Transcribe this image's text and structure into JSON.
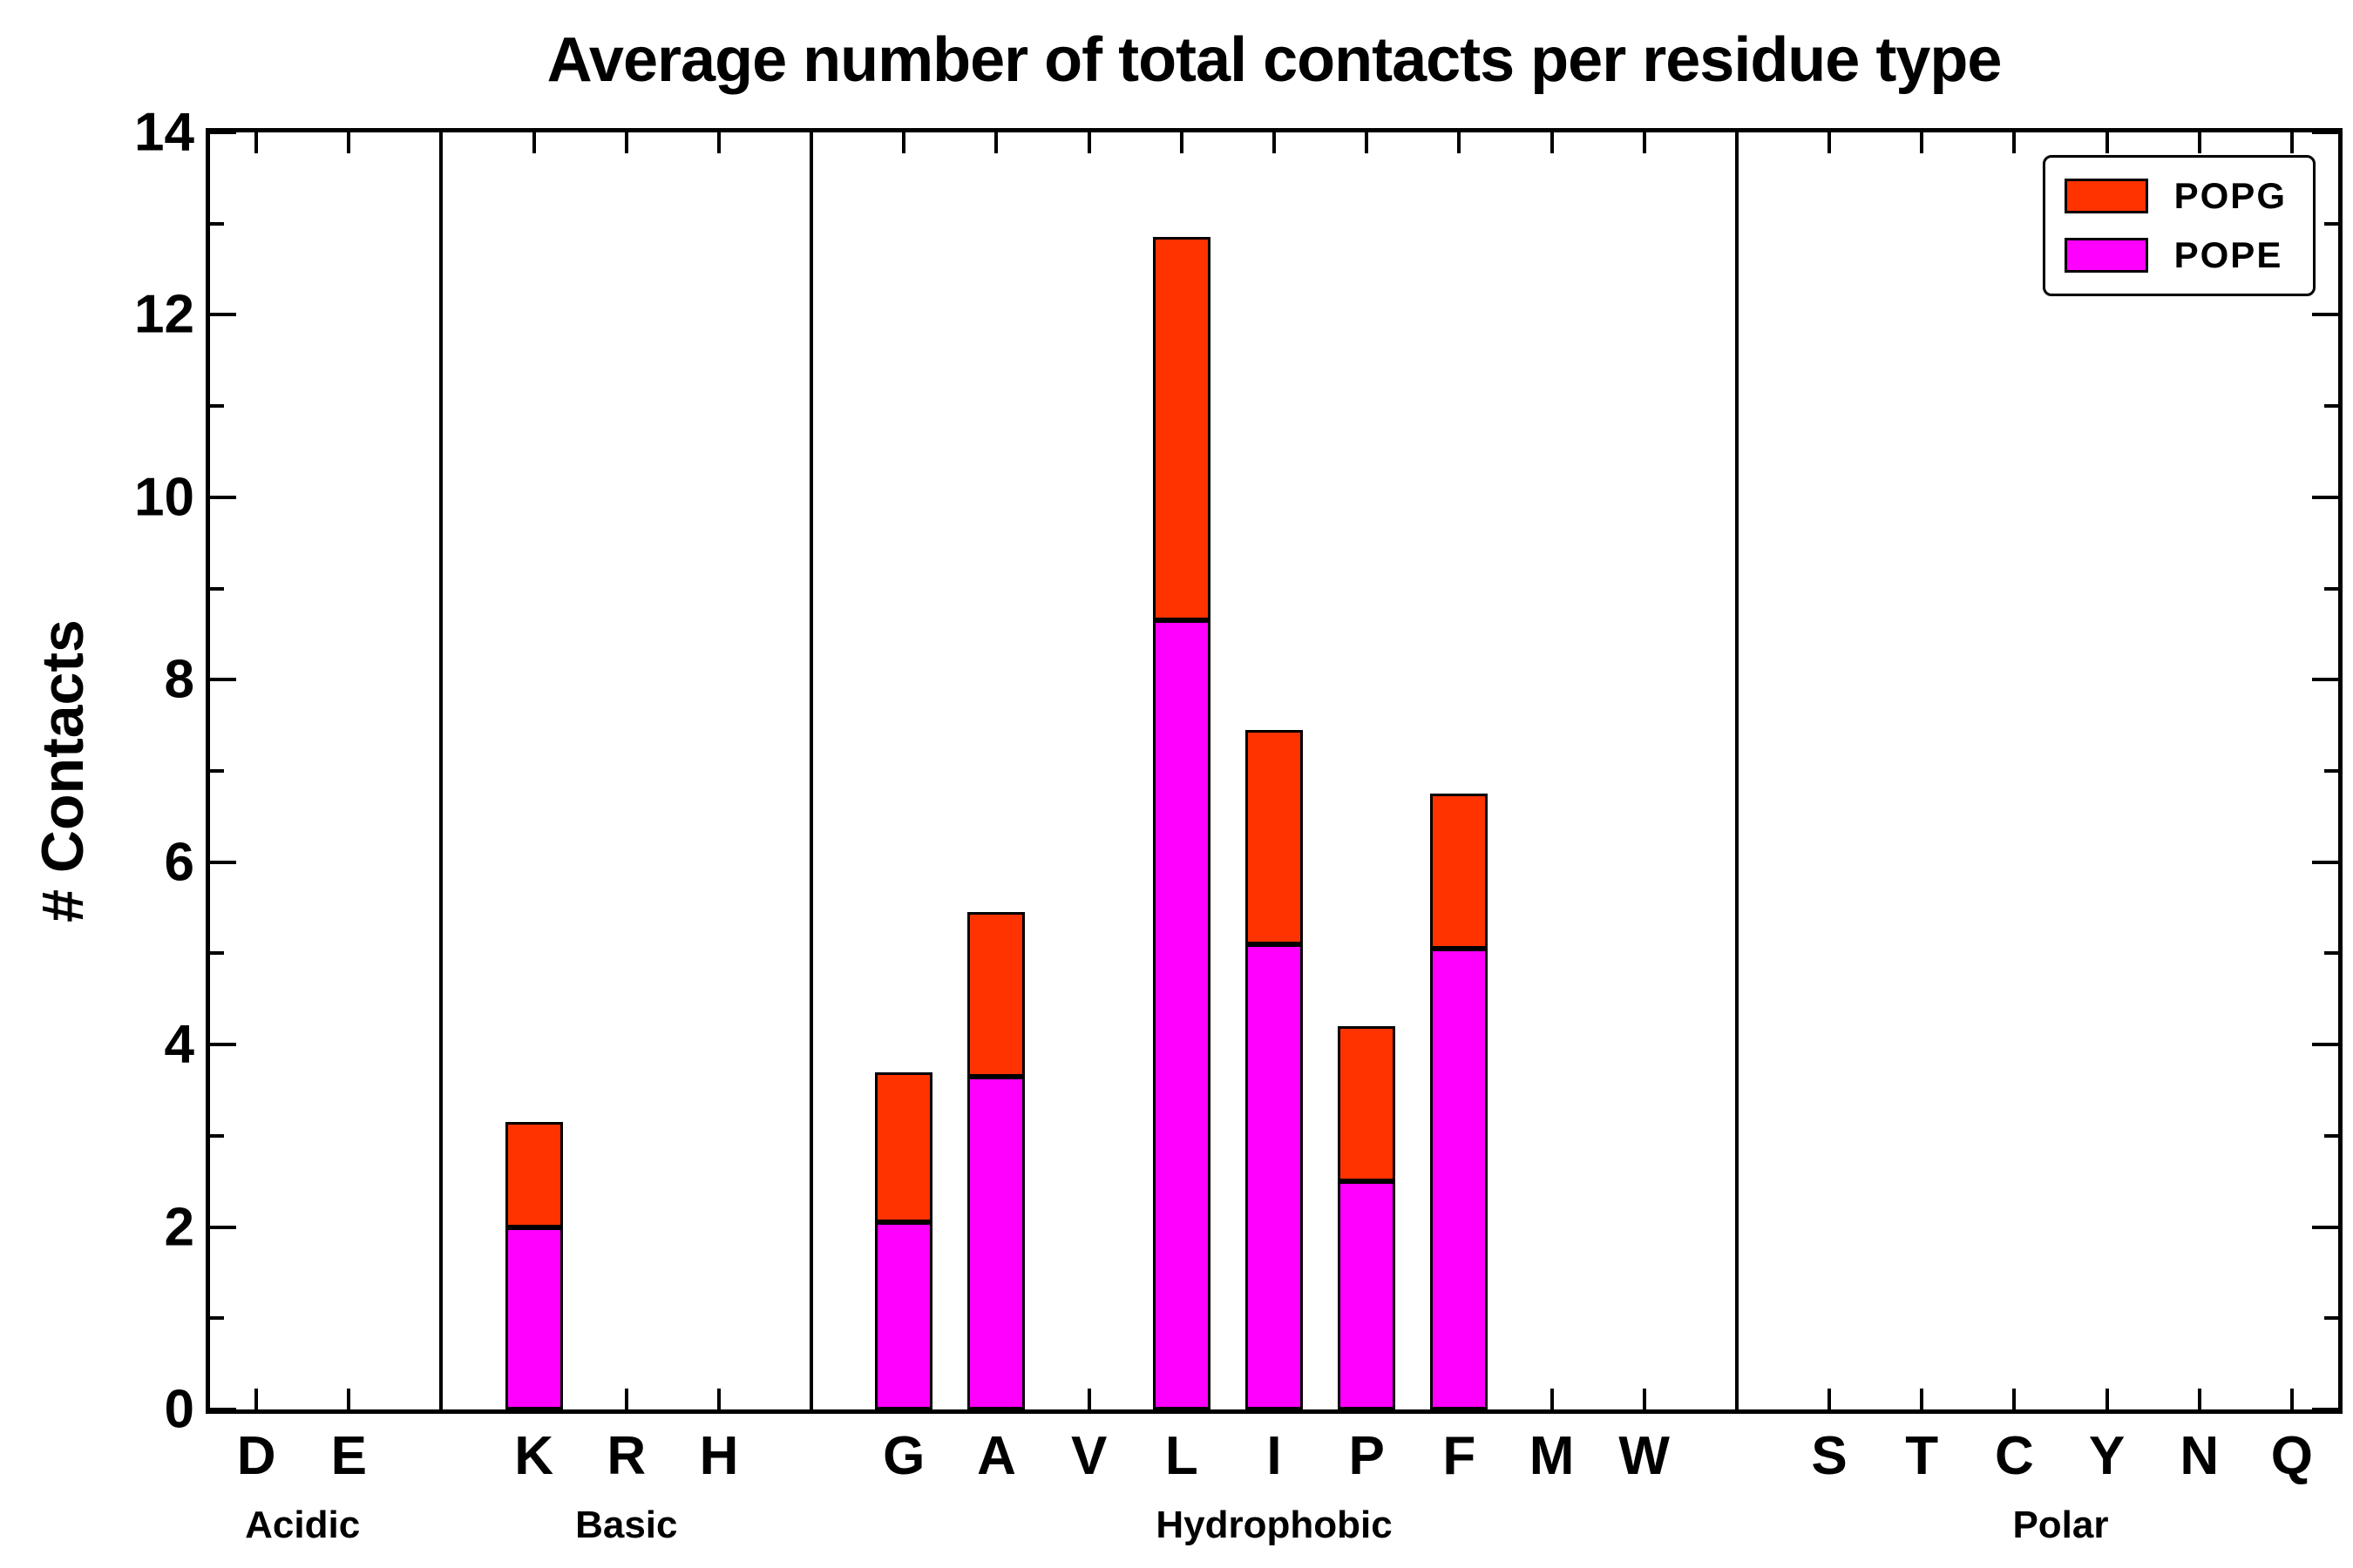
{
  "chart_data": {
    "type": "bar",
    "stacked": true,
    "title": "Average number of total contacts per residue type",
    "ylabel": "# Contacts",
    "ylim": [
      0,
      14
    ],
    "yticks": [
      0,
      2,
      4,
      6,
      8,
      10,
      12,
      14
    ],
    "grid": false,
    "groups": [
      {
        "label": "Acidic",
        "categories": [
          "D",
          "E"
        ]
      },
      {
        "label": "Basic",
        "categories": [
          "K",
          "R",
          "H"
        ]
      },
      {
        "label": "Hydrophobic",
        "categories": [
          "G",
          "A",
          "V",
          "L",
          "I",
          "P",
          "F",
          "M",
          "W"
        ]
      },
      {
        "label": "Polar",
        "categories": [
          "S",
          "T",
          "C",
          "Y",
          "N",
          "Q"
        ]
      }
    ],
    "series": [
      {
        "name": "POPE",
        "color": "#ff00ff",
        "values": {
          "D": 0,
          "E": 0,
          "K": 2.0,
          "R": 0,
          "H": 0,
          "G": 2.05,
          "A": 3.65,
          "V": 0,
          "L": 8.65,
          "I": 5.1,
          "P": 2.5,
          "F": 5.05,
          "M": 0,
          "W": 0,
          "S": 0,
          "T": 0,
          "C": 0,
          "Y": 0,
          "N": 0,
          "Q": 0
        }
      },
      {
        "name": "POPG",
        "color": "#ff3300",
        "values": {
          "D": 0,
          "E": 0,
          "K": 1.15,
          "R": 0,
          "H": 0,
          "G": 1.65,
          "A": 1.8,
          "V": 0,
          "L": 4.2,
          "I": 2.35,
          "P": 1.7,
          "F": 1.7,
          "M": 0,
          "W": 0,
          "S": 0,
          "T": 0,
          "C": 0,
          "Y": 0,
          "N": 0,
          "Q": 0
        }
      }
    ],
    "legend": {
      "position": "top-right",
      "entries": [
        "POPG",
        "POPE"
      ]
    }
  }
}
